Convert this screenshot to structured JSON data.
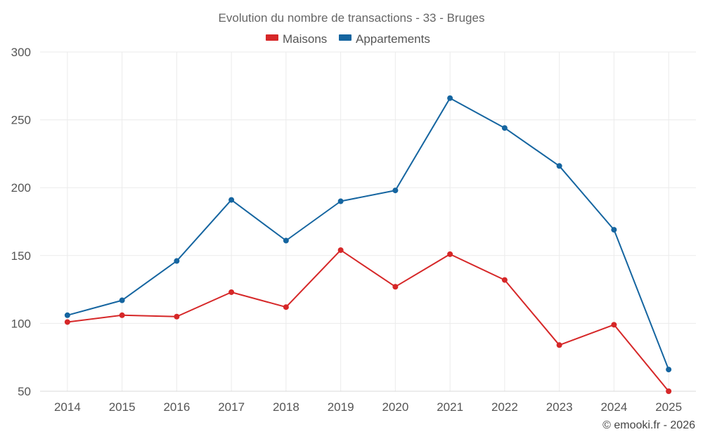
{
  "chart_data": {
    "type": "line",
    "title": "Evolution du nombre de transactions - 33 - Bruges",
    "categories": [
      "2014",
      "2015",
      "2016",
      "2017",
      "2018",
      "2019",
      "2020",
      "2021",
      "2022",
      "2023",
      "2024",
      "2025"
    ],
    "ylim": [
      50,
      300
    ],
    "yticks": [
      "50",
      "100",
      "150",
      "200",
      "250",
      "300"
    ],
    "grid": true,
    "legend_position": "top-center",
    "series": [
      {
        "name": "Maisons",
        "color": "#d62728",
        "values": [
          101,
          106,
          105,
          123,
          112,
          154,
          127,
          151,
          132,
          84,
          99,
          50
        ]
      },
      {
        "name": "Appartements",
        "color": "#1565a0",
        "values": [
          106,
          117,
          146,
          191,
          161,
          190,
          198,
          266,
          244,
          216,
          169,
          66
        ]
      }
    ],
    "credit": "© emooki.fr - 2026"
  }
}
